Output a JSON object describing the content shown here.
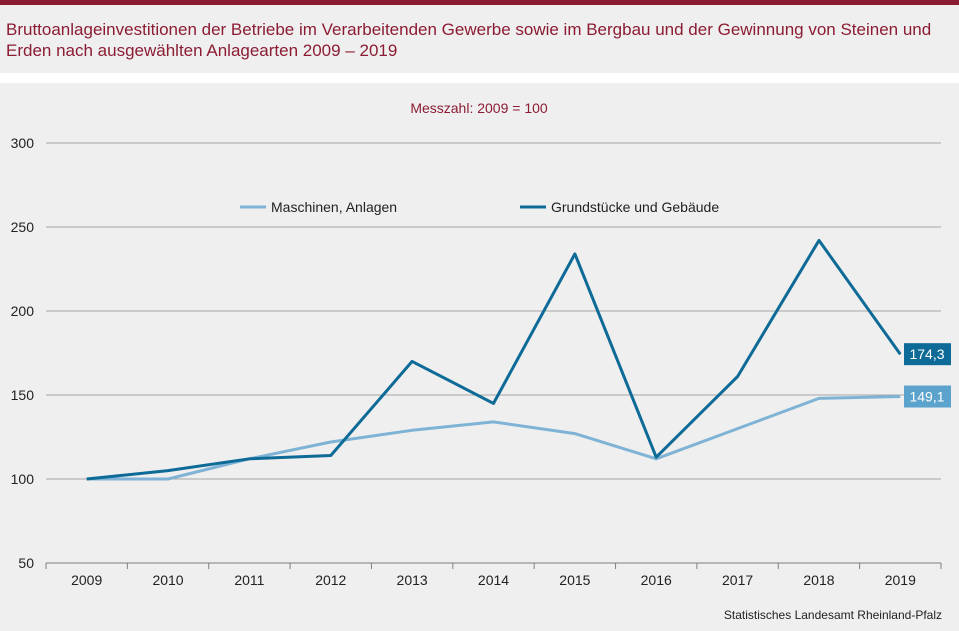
{
  "title": "Bruttoanlageinvestitionen der Betriebe im Verarbeitenden Gewerbe sowie im Bergbau und der Gewinnung von Steinen und Erden nach ausgewählten Anlagearten 2009 – 2019",
  "subtitle": "Messzahl:  2009 = 100",
  "source": "Statistisches Landesamt  Rheinland-Pfalz",
  "colors": {
    "accent": "#8c1c33",
    "series_light": "#7fb3d5",
    "series_dark": "#0e6a96",
    "label_light_bg": "#5ba3cc",
    "label_dark_bg": "#0e6a96"
  },
  "chart_data": {
    "type": "line",
    "x": [
      "2009",
      "2010",
      "2011",
      "2012",
      "2013",
      "2014",
      "2015",
      "2016",
      "2017",
      "2018",
      "2019"
    ],
    "ylim": [
      50,
      300
    ],
    "yticks": [
      "50",
      "100",
      "150",
      "200",
      "250",
      "300"
    ],
    "grid": true,
    "legend_position": "top-center",
    "series": [
      {
        "name": "Maschinen, Anlagen",
        "values": [
          100,
          100,
          112,
          122,
          129,
          134,
          127,
          112,
          130,
          148,
          149.1
        ],
        "end_label": "149,1"
      },
      {
        "name": "Grundstücke und Gebäude",
        "values": [
          100,
          105,
          112,
          114,
          170,
          145,
          234,
          113,
          161,
          242,
          174.3
        ],
        "end_label": "174,3"
      }
    ]
  }
}
